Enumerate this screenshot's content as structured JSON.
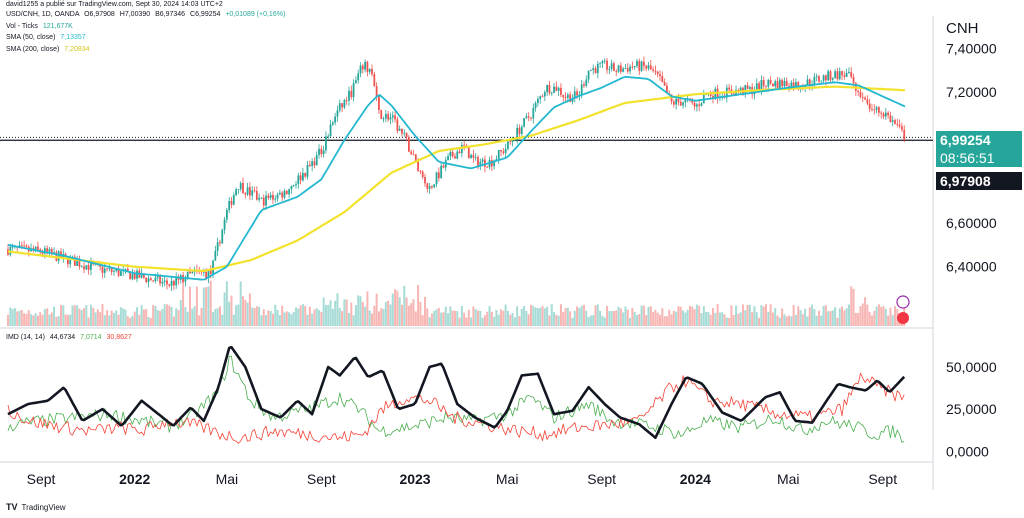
{
  "header": {
    "published": "david1255 a publié sur TradingView.com, Sept 30, 2024 14:03 UTC+2",
    "symbol_line": "USD/CNH, 1D, OANDA",
    "ohlc": {
      "o": "O6,97908",
      "h": "H7,00390",
      "b": "B6,97346",
      "c": "C6,99254",
      "chg": "+0,01089 (+0,16%)"
    },
    "volume_label": "Vol - Ticks",
    "volume_value": "121,677K",
    "sma50_label": "SMA (50, close)",
    "sma50_value": "7,13357",
    "sma200_label": "SMA (200, close)",
    "sma200_value": "7,20834",
    "imd_label": "IMD (14, 14)",
    "imd_v1": "44,6734",
    "imd_v2": "7,0714",
    "imd_v3": "30,8627"
  },
  "colors": {
    "up": "#26a69a",
    "down": "#ef5350",
    "sma50": "#22b8cf",
    "sma200": "#f2e22c",
    "imd_main": "#131722",
    "imd_up": "#4caf50",
    "imd_down": "#f44336"
  },
  "labels": {
    "currency": "CNH",
    "current_price": "6,99254",
    "countdown": "08:56:51",
    "open_price": "6,97908",
    "branding": "TradingView"
  },
  "chart_data": {
    "type": "candlestick",
    "symbol": "USD/CNH",
    "interval": "1D",
    "price_axis": {
      "ticks": [
        "7,40000",
        "7,20000",
        "6,60000",
        "6,40000"
      ],
      "values": [
        7.4,
        7.2,
        6.6,
        6.4
      ],
      "ylim": [
        6.33,
        7.42
      ]
    },
    "x_ticks": [
      "Sept",
      "2022",
      "Mai",
      "Sept",
      "2023",
      "Mai",
      "Sept",
      "2024",
      "Mai",
      "Sept"
    ],
    "x_tick_dates": [
      "2021-09-01",
      "2022-01-01",
      "2022-05-01",
      "2022-09-01",
      "2023-01-01",
      "2023-05-01",
      "2023-09-01",
      "2024-01-01",
      "2024-05-01",
      "2024-09-01"
    ],
    "date_range": [
      "2021-07-20",
      "2024-09-30"
    ],
    "close_anchors": [
      [
        "2021-07-20",
        6.48
      ],
      [
        "2021-09-01",
        6.47
      ],
      [
        "2021-11-15",
        6.39
      ],
      [
        "2022-01-01",
        6.36
      ],
      [
        "2022-02-15",
        6.32
      ],
      [
        "2022-03-20",
        6.37
      ],
      [
        "2022-04-10",
        6.37
      ],
      [
        "2022-05-01",
        6.65
      ],
      [
        "2022-05-15",
        6.78
      ],
      [
        "2022-06-15",
        6.7
      ],
      [
        "2022-07-15",
        6.74
      ],
      [
        "2022-08-15",
        6.85
      ],
      [
        "2022-09-01",
        6.93
      ],
      [
        "2022-09-20",
        7.1
      ],
      [
        "2022-10-10",
        7.2
      ],
      [
        "2022-10-25",
        7.32
      ],
      [
        "2022-11-05",
        7.3
      ],
      [
        "2022-11-15",
        7.1
      ],
      [
        "2022-12-01",
        7.08
      ],
      [
        "2022-12-20",
        6.98
      ],
      [
        "2023-01-05",
        6.85
      ],
      [
        "2023-01-20",
        6.76
      ],
      [
        "2023-02-15",
        6.9
      ],
      [
        "2023-03-05",
        6.95
      ],
      [
        "2023-03-20",
        6.88
      ],
      [
        "2023-04-10",
        6.88
      ],
      [
        "2023-05-01",
        6.95
      ],
      [
        "2023-05-15",
        7.02
      ],
      [
        "2023-06-01",
        7.1
      ],
      [
        "2023-06-20",
        7.22
      ],
      [
        "2023-07-05",
        7.22
      ],
      [
        "2023-07-15",
        7.18
      ],
      [
        "2023-08-01",
        7.18
      ],
      [
        "2023-08-15",
        7.3
      ],
      [
        "2023-09-05",
        7.32
      ],
      [
        "2023-09-20",
        7.3
      ],
      [
        "2023-10-15",
        7.32
      ],
      [
        "2023-11-01",
        7.31
      ],
      [
        "2023-11-15",
        7.26
      ],
      [
        "2023-12-01",
        7.15
      ],
      [
        "2023-12-20",
        7.16
      ],
      [
        "2024-01-01",
        7.13
      ],
      [
        "2024-01-15",
        7.19
      ],
      [
        "2024-02-15",
        7.2
      ],
      [
        "2024-03-15",
        7.21
      ],
      [
        "2024-04-01",
        7.24
      ],
      [
        "2024-05-01",
        7.24
      ],
      [
        "2024-05-15",
        7.23
      ],
      [
        "2024-06-01",
        7.25
      ],
      [
        "2024-07-01",
        7.28
      ],
      [
        "2024-07-15",
        7.28
      ],
      [
        "2024-07-25",
        7.25
      ],
      [
        "2024-08-05",
        7.16
      ],
      [
        "2024-08-20",
        7.12
      ],
      [
        "2024-09-05",
        7.1
      ],
      [
        "2024-09-20",
        7.04
      ],
      [
        "2024-09-30",
        6.99254
      ]
    ],
    "sma50_anchors": [
      [
        "2021-07-20",
        6.5
      ],
      [
        "2021-10-01",
        6.45
      ],
      [
        "2022-01-01",
        6.37
      ],
      [
        "2022-04-01",
        6.34
      ],
      [
        "2022-05-01",
        6.4
      ],
      [
        "2022-06-15",
        6.66
      ],
      [
        "2022-08-01",
        6.72
      ],
      [
        "2022-09-01",
        6.8
      ],
      [
        "2022-10-01",
        6.98
      ],
      [
        "2022-11-01",
        7.14
      ],
      [
        "2022-11-15",
        7.19
      ],
      [
        "2022-12-01",
        7.14
      ],
      [
        "2023-01-01",
        7.0
      ],
      [
        "2023-02-01",
        6.88
      ],
      [
        "2023-03-15",
        6.85
      ],
      [
        "2023-05-01",
        6.9
      ],
      [
        "2023-06-01",
        7.02
      ],
      [
        "2023-07-01",
        7.13
      ],
      [
        "2023-08-01",
        7.18
      ],
      [
        "2023-09-01",
        7.22
      ],
      [
        "2023-10-01",
        7.27
      ],
      [
        "2023-11-01",
        7.26
      ],
      [
        "2023-12-01",
        7.18
      ],
      [
        "2024-01-01",
        7.16
      ],
      [
        "2024-03-01",
        7.19
      ],
      [
        "2024-05-01",
        7.22
      ],
      [
        "2024-07-01",
        7.245
      ],
      [
        "2024-08-01",
        7.23
      ],
      [
        "2024-09-01",
        7.18
      ],
      [
        "2024-09-30",
        7.13357
      ]
    ],
    "sma200_anchors": [
      [
        "2021-07-20",
        6.47
      ],
      [
        "2022-01-01",
        6.4
      ],
      [
        "2022-04-01",
        6.38
      ],
      [
        "2022-06-01",
        6.43
      ],
      [
        "2022-08-01",
        6.52
      ],
      [
        "2022-10-01",
        6.65
      ],
      [
        "2022-12-01",
        6.83
      ],
      [
        "2023-02-01",
        6.93
      ],
      [
        "2023-04-01",
        6.96
      ],
      [
        "2023-06-01",
        7.0
      ],
      [
        "2023-08-01",
        7.07
      ],
      [
        "2023-10-01",
        7.15
      ],
      [
        "2024-01-01",
        7.19
      ],
      [
        "2024-04-01",
        7.21
      ],
      [
        "2024-07-01",
        7.225
      ],
      [
        "2024-09-30",
        7.20834
      ]
    ],
    "imd": {
      "ticks": [
        "50,0000",
        "25,0000",
        "0,0000"
      ],
      "tick_values": [
        50,
        25,
        0
      ],
      "ylim": [
        -4,
        66
      ],
      "main_anchors": [
        [
          "2021-07-20",
          22
        ],
        [
          "2021-08-15",
          28
        ],
        [
          "2021-09-10",
          30
        ],
        [
          "2021-10-01",
          38
        ],
        [
          "2021-10-25",
          18
        ],
        [
          "2021-11-20",
          25
        ],
        [
          "2021-12-15",
          15
        ],
        [
          "2022-01-10",
          30
        ],
        [
          "2022-02-01",
          22
        ],
        [
          "2022-02-20",
          15
        ],
        [
          "2022-03-15",
          26
        ],
        [
          "2022-04-01",
          18
        ],
        [
          "2022-04-20",
          38
        ],
        [
          "2022-05-05",
          63
        ],
        [
          "2022-05-25",
          50
        ],
        [
          "2022-06-15",
          25
        ],
        [
          "2022-07-10",
          20
        ],
        [
          "2022-08-01",
          30
        ],
        [
          "2022-08-20",
          22
        ],
        [
          "2022-09-10",
          50
        ],
        [
          "2022-09-25",
          45
        ],
        [
          "2022-10-15",
          56
        ],
        [
          "2022-11-01",
          44
        ],
        [
          "2022-11-20",
          48
        ],
        [
          "2022-12-10",
          25
        ],
        [
          "2023-01-01",
          28
        ],
        [
          "2023-01-20",
          50
        ],
        [
          "2023-02-05",
          52
        ],
        [
          "2023-02-25",
          28
        ],
        [
          "2023-03-20",
          20
        ],
        [
          "2023-04-15",
          14
        ],
        [
          "2023-05-01",
          24
        ],
        [
          "2023-05-20",
          45
        ],
        [
          "2023-06-10",
          46
        ],
        [
          "2023-07-01",
          22
        ],
        [
          "2023-07-25",
          24
        ],
        [
          "2023-08-15",
          38
        ],
        [
          "2023-09-05",
          28
        ],
        [
          "2023-09-25",
          20
        ],
        [
          "2023-10-20",
          16
        ],
        [
          "2023-11-10",
          8
        ],
        [
          "2023-12-01",
          28
        ],
        [
          "2023-12-20",
          44
        ],
        [
          "2024-01-10",
          40
        ],
        [
          "2024-02-05",
          23
        ],
        [
          "2024-03-01",
          18
        ],
        [
          "2024-04-01",
          32
        ],
        [
          "2024-04-20",
          35
        ],
        [
          "2024-05-10",
          18
        ],
        [
          "2024-06-01",
          17
        ],
        [
          "2024-06-20",
          30
        ],
        [
          "2024-07-05",
          40
        ],
        [
          "2024-07-20",
          38
        ],
        [
          "2024-08-10",
          36
        ],
        [
          "2024-08-25",
          42
        ],
        [
          "2024-09-10",
          35
        ],
        [
          "2024-09-30",
          44.6734
        ]
      ],
      "plus_anchors": [
        [
          "2021-07-20",
          15
        ],
        [
          "2021-09-01",
          18
        ],
        [
          "2021-10-15",
          20
        ],
        [
          "2021-12-01",
          22
        ],
        [
          "2022-01-10",
          18
        ],
        [
          "2022-02-15",
          15
        ],
        [
          "2022-03-15",
          20
        ],
        [
          "2022-04-20",
          35
        ],
        [
          "2022-05-05",
          55
        ],
        [
          "2022-06-01",
          30
        ],
        [
          "2022-07-01",
          20
        ],
        [
          "2022-08-15",
          25
        ],
        [
          "2022-09-25",
          32
        ],
        [
          "2022-10-20",
          25
        ],
        [
          "2022-11-15",
          12
        ],
        [
          "2023-01-01",
          15
        ],
        [
          "2023-02-10",
          20
        ],
        [
          "2023-03-20",
          18
        ],
        [
          "2023-05-01",
          22
        ],
        [
          "2023-06-01",
          32
        ],
        [
          "2023-07-01",
          20
        ],
        [
          "2023-08-15",
          28
        ],
        [
          "2023-09-15",
          18
        ],
        [
          "2023-11-01",
          15
        ],
        [
          "2023-12-15",
          10
        ],
        [
          "2024-01-15",
          18
        ],
        [
          "2024-03-01",
          14
        ],
        [
          "2024-04-15",
          20
        ],
        [
          "2024-05-20",
          12
        ],
        [
          "2024-06-20",
          18
        ],
        [
          "2024-07-25",
          15
        ],
        [
          "2024-08-20",
          10
        ],
        [
          "2024-09-15",
          12
        ],
        [
          "2024-09-30",
          7.0714
        ]
      ],
      "minus_anchors": [
        [
          "2021-07-20",
          25
        ],
        [
          "2021-08-15",
          18
        ],
        [
          "2021-09-20",
          15
        ],
        [
          "2021-11-01",
          12
        ],
        [
          "2021-12-15",
          14
        ],
        [
          "2022-01-10",
          12
        ],
        [
          "2022-02-15",
          18
        ],
        [
          "2022-03-25",
          15
        ],
        [
          "2022-04-25",
          10
        ],
        [
          "2022-05-20",
          8
        ],
        [
          "2022-07-01",
          12
        ],
        [
          "2022-08-15",
          10
        ],
        [
          "2022-09-25",
          8
        ],
        [
          "2022-10-25",
          10
        ],
        [
          "2022-11-20",
          25
        ],
        [
          "2022-12-20",
          32
        ],
        [
          "2023-01-20",
          30
        ],
        [
          "2023-02-20",
          20
        ],
        [
          "2023-04-01",
          16
        ],
        [
          "2023-05-15",
          12
        ],
        [
          "2023-06-20",
          10
        ],
        [
          "2023-08-01",
          14
        ],
        [
          "2023-09-15",
          16
        ],
        [
          "2023-10-20",
          18
        ],
        [
          "2023-12-01",
          38
        ],
        [
          "2023-12-20",
          42
        ],
        [
          "2024-01-20",
          30
        ],
        [
          "2024-03-01",
          28
        ],
        [
          "2024-04-20",
          22
        ],
        [
          "2024-06-01",
          20
        ],
        [
          "2024-07-10",
          25
        ],
        [
          "2024-08-05",
          45
        ],
        [
          "2024-08-25",
          38
        ],
        [
          "2024-09-15",
          34
        ],
        [
          "2024-09-30",
          30.8627
        ]
      ]
    }
  }
}
